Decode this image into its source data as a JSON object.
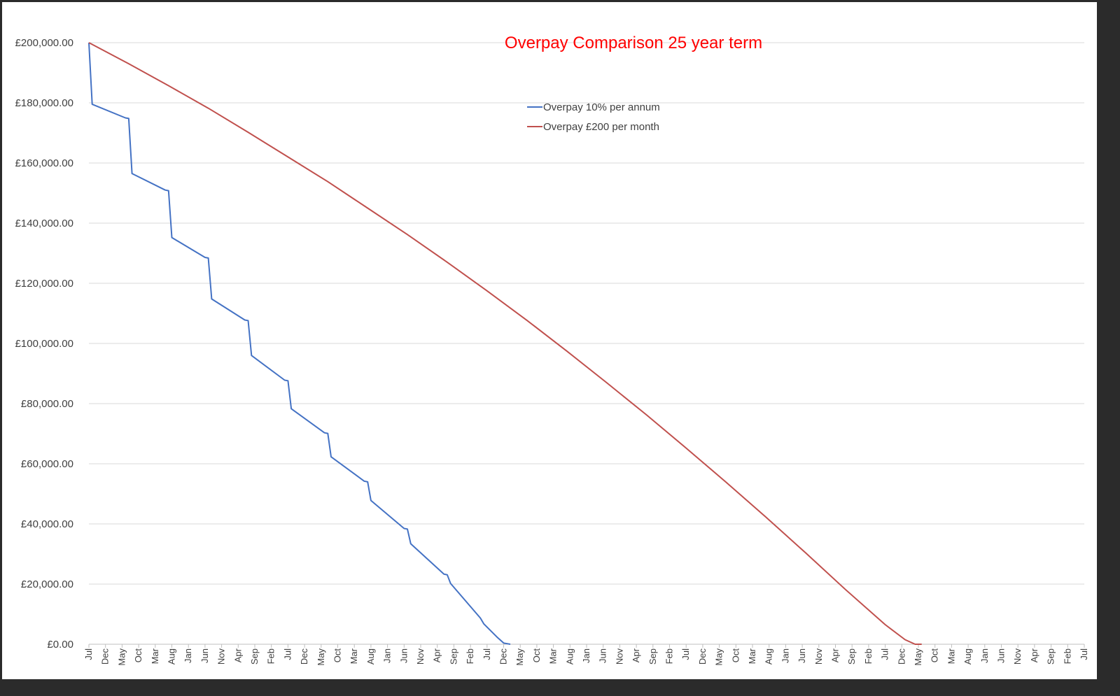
{
  "chart_data": {
    "type": "line",
    "title": "Overpay Comparison 25 year term",
    "title_color": "#ff0000",
    "xlabel": "",
    "ylabel": "",
    "ylim": [
      0,
      200000
    ],
    "y_ticks": [
      "£0.00",
      "£20,000.00",
      "£40,000.00",
      "£60,000.00",
      "£80,000.00",
      "£100,000.00",
      "£120,000.00",
      "£140,000.00",
      "£160,000.00",
      "£180,000.00",
      "£200,000.00"
    ],
    "grid": true,
    "legend_position": "top-center",
    "x_start": "Jul",
    "x_tick_interval_months": 5,
    "x_total_months": 300,
    "x_ticks": [
      "Jul",
      "Dec",
      "May",
      "Oct",
      "Mar",
      "Aug",
      "Jan",
      "Jun",
      "Nov",
      "Apr",
      "Sep",
      "Feb",
      "Jul",
      "Dec",
      "May",
      "Oct",
      "Mar",
      "Aug",
      "Jan",
      "Jun",
      "Nov",
      "Apr",
      "Sep",
      "Feb",
      "Jul",
      "Dec",
      "May",
      "Oct",
      "Mar",
      "Aug",
      "Jan",
      "Jun",
      "Nov",
      "Apr",
      "Sep",
      "Feb",
      "Jul",
      "Dec",
      "May",
      "Oct",
      "Mar",
      "Aug",
      "Jan",
      "Jun",
      "Nov",
      "Apr",
      "Sep",
      "Feb",
      "Jul",
      "Dec",
      "May",
      "Oct",
      "Mar",
      "Aug",
      "Jan",
      "Jun",
      "Nov",
      "Apr",
      "Sep",
      "Feb",
      "Jul"
    ],
    "series": [
      {
        "name": "Overpay 10% per annum",
        "color": "#4472c4",
        "points": [
          [
            0,
            200000
          ],
          [
            1,
            179500
          ],
          [
            11,
            175000
          ],
          [
            12,
            174800
          ],
          [
            13,
            156500
          ],
          [
            23,
            151000
          ],
          [
            24,
            150800
          ],
          [
            25,
            135200
          ],
          [
            35,
            128600
          ],
          [
            36,
            128400
          ],
          [
            37,
            114800
          ],
          [
            47,
            107800
          ],
          [
            48,
            107600
          ],
          [
            49,
            96000
          ],
          [
            59,
            87800
          ],
          [
            60,
            87600
          ],
          [
            61,
            78300
          ],
          [
            71,
            70300
          ],
          [
            72,
            70100
          ],
          [
            73,
            62300
          ],
          [
            83,
            54200
          ],
          [
            84,
            54000
          ],
          [
            85,
            47800
          ],
          [
            95,
            38500
          ],
          [
            96,
            38300
          ],
          [
            97,
            33400
          ],
          [
            107,
            23300
          ],
          [
            108,
            23100
          ],
          [
            109,
            20200
          ],
          [
            118,
            8700
          ],
          [
            119,
            6800
          ],
          [
            123,
            2400
          ],
          [
            125,
            400
          ],
          [
            127,
            0
          ]
        ]
      },
      {
        "name": "Overpay £200 per month",
        "color": "#c0504d",
        "points": [
          [
            0,
            200000
          ],
          [
            12,
            193000
          ],
          [
            24,
            185700
          ],
          [
            36,
            178200
          ],
          [
            48,
            170200
          ],
          [
            60,
            162000
          ],
          [
            72,
            153800
          ],
          [
            84,
            145000
          ],
          [
            96,
            136200
          ],
          [
            108,
            127000
          ],
          [
            120,
            117500
          ],
          [
            132,
            107700
          ],
          [
            144,
            97500
          ],
          [
            156,
            87000
          ],
          [
            168,
            76300
          ],
          [
            180,
            65200
          ],
          [
            192,
            53900
          ],
          [
            204,
            42300
          ],
          [
            216,
            30400
          ],
          [
            228,
            18200
          ],
          [
            240,
            6500
          ],
          [
            246,
            1500
          ],
          [
            249,
            0
          ],
          [
            251,
            0
          ]
        ]
      }
    ]
  }
}
